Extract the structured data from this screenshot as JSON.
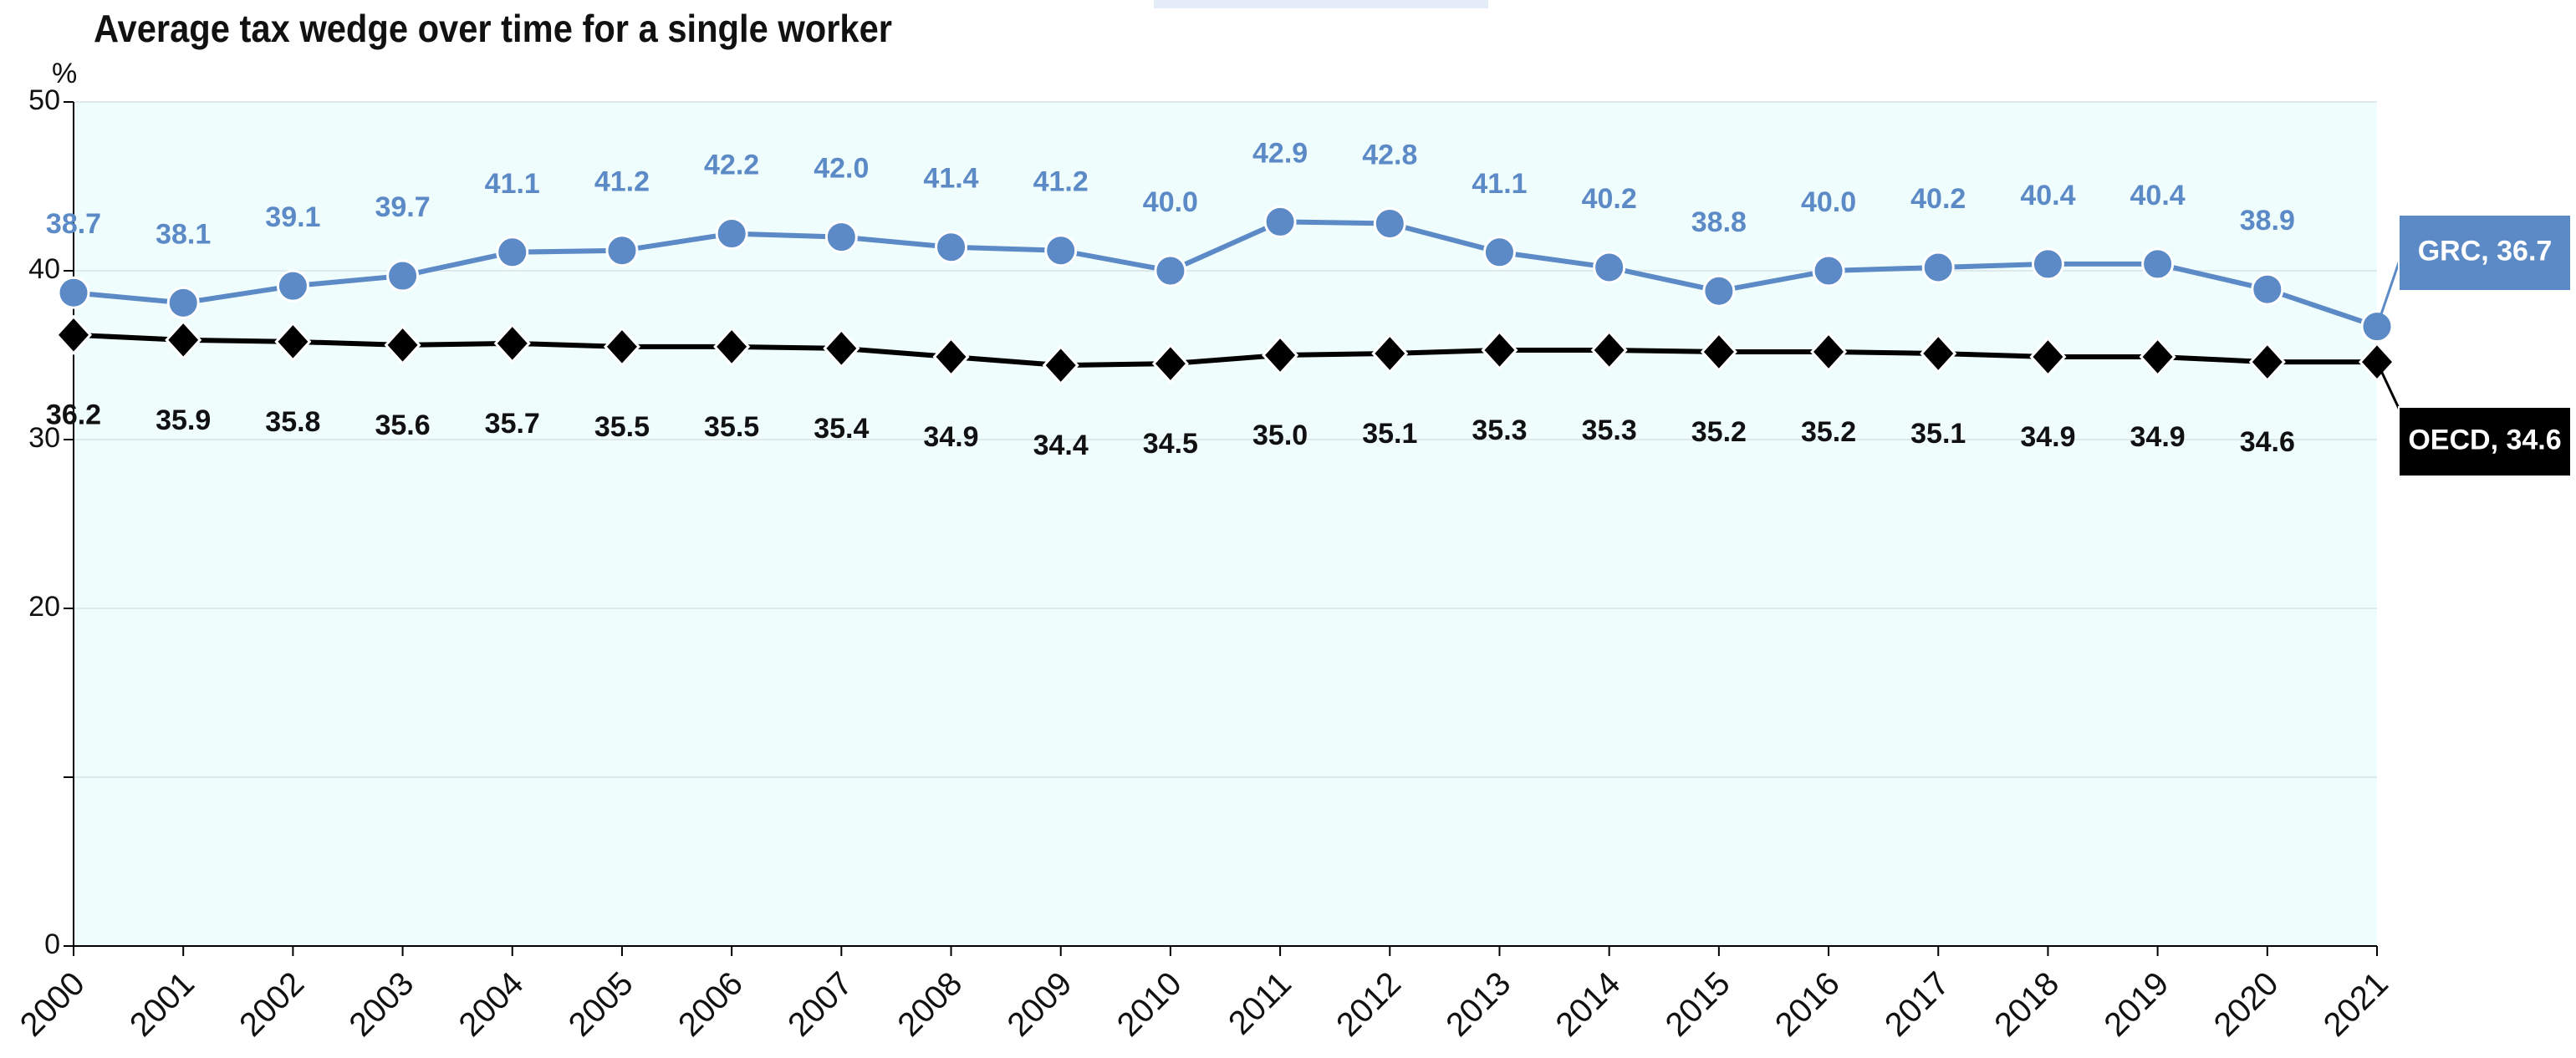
{
  "chart_data": {
    "type": "line",
    "title": "Average tax wedge over time for a single worker",
    "y_unit": "%",
    "x": [
      "2000",
      "2001",
      "2002",
      "2003",
      "2004",
      "2005",
      "2006",
      "2007",
      "2008",
      "2009",
      "2010",
      "2011",
      "2012",
      "2013",
      "2014",
      "2015",
      "2016",
      "2017",
      "2018",
      "2019",
      "2020",
      "2021"
    ],
    "ylim": [
      0,
      50
    ],
    "yticks": [
      0,
      {
        "value": 10,
        "label": null
      },
      20,
      30,
      40,
      50
    ],
    "grid": true,
    "background": "#f0fdfd",
    "series": [
      {
        "name": "GRC",
        "color": "#5b8ac6",
        "marker": "circle",
        "values": [
          38.7,
          38.1,
          39.1,
          39.7,
          41.1,
          41.2,
          42.2,
          42.0,
          41.4,
          41.2,
          40.0,
          42.9,
          42.8,
          41.1,
          40.2,
          38.8,
          40.0,
          40.2,
          40.4,
          40.4,
          38.9,
          36.7
        ],
        "value_labels": [
          "38.7",
          "38.1",
          "39.1",
          "39.7",
          "41.1",
          "41.2",
          "42.2",
          "42.0",
          "41.4",
          "41.2",
          "40.0",
          "42.9",
          "42.8",
          "41.1",
          "40.2",
          "38.8",
          "40.0",
          "40.2",
          "40.4",
          "40.4",
          "38.9",
          null
        ],
        "callout": "GRC, 36.7"
      },
      {
        "name": "OECD",
        "color": "#000000",
        "marker": "diamond",
        "values": [
          36.2,
          35.9,
          35.8,
          35.6,
          35.7,
          35.5,
          35.5,
          35.4,
          34.9,
          34.4,
          34.5,
          35.0,
          35.1,
          35.3,
          35.3,
          35.2,
          35.2,
          35.1,
          34.9,
          34.9,
          34.6,
          34.6
        ],
        "value_labels": [
          "36.2",
          "35.9",
          "35.8",
          "35.6",
          "35.7",
          "35.5",
          "35.5",
          "35.4",
          "34.9",
          "34.4",
          "34.5",
          "35.0",
          "35.1",
          "35.3",
          "35.3",
          "35.2",
          "35.2",
          "35.1",
          "34.9",
          "34.9",
          "34.6",
          null
        ],
        "callout": "OECD, 34.6"
      }
    ]
  }
}
